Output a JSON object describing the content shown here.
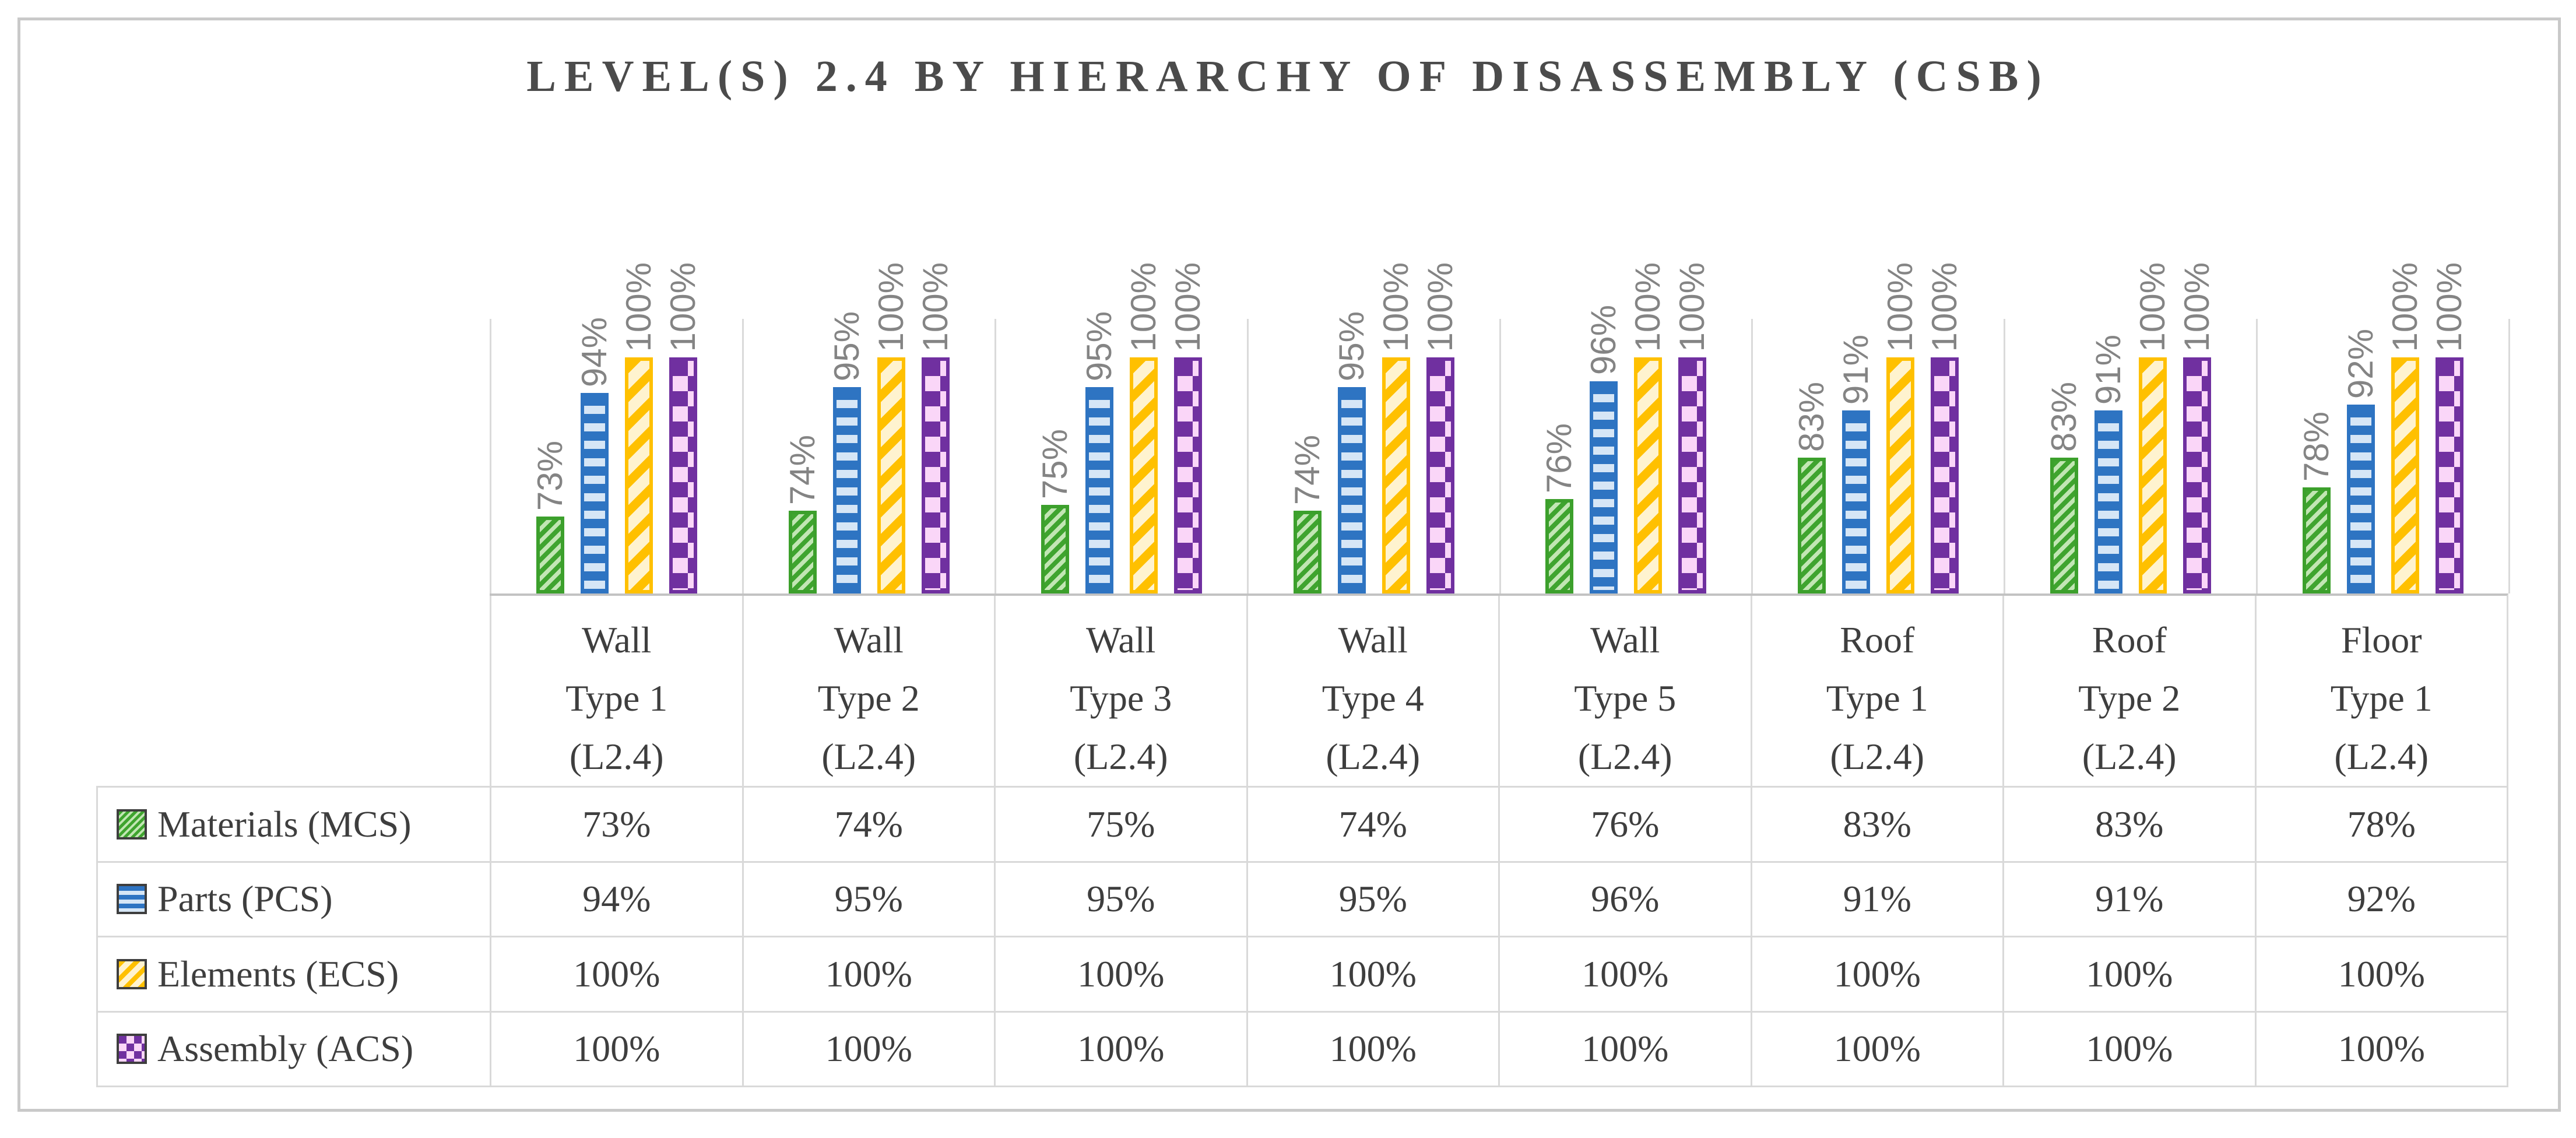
{
  "figure": {
    "background": "#ffffff",
    "border_color": "#c9c9c9",
    "gridline_color": "#d9d9d9",
    "axis_line_color": "#c2c2c2",
    "title_color": "#4b4b4b",
    "data_label_color": "#848484"
  },
  "chart_data": {
    "type": "bar",
    "title": "LEVEL(S) 2.4 BY HIERARCHY OF DISASSEMBLY (CSB)",
    "categories": [
      [
        "Wall",
        "Type 1",
        "(L2.4)"
      ],
      [
        "Wall",
        "Type 2",
        "(L2.4)"
      ],
      [
        "Wall",
        "Type 3",
        "(L2.4)"
      ],
      [
        "Wall",
        "Type 4",
        "(L2.4)"
      ],
      [
        "Wall",
        "Type 5",
        "(L2.4)"
      ],
      [
        "Roof",
        "Type 1",
        "(L2.4)"
      ],
      [
        "Roof",
        "Type 2",
        "(L2.4)"
      ],
      [
        "Floor",
        "Type 1",
        "(L2.4)"
      ]
    ],
    "series": [
      {
        "name": "Materials (MCS)",
        "pattern": "diagonal-hatch",
        "pattern_key": "materials",
        "color": "#3fa42f",
        "pattern_light": "#c2e6b4",
        "values": [
          73,
          74,
          75,
          74,
          76,
          83,
          83,
          78
        ]
      },
      {
        "name": "Parts (PCS)",
        "pattern": "horizontal-stripes",
        "pattern_key": "parts",
        "color": "#2e74c2",
        "pattern_light": "#d6e6f6",
        "values": [
          94,
          95,
          95,
          95,
          96,
          91,
          91,
          92
        ]
      },
      {
        "name": "Elements (ECS)",
        "pattern": "diagonal-stripes",
        "pattern_key": "elements",
        "color": "#ffc000",
        "pattern_light": "#fff3cf",
        "values": [
          100,
          100,
          100,
          100,
          100,
          100,
          100,
          100
        ]
      },
      {
        "name": "Assembly (ACS)",
        "pattern": "checkerboard",
        "pattern_key": "assembly",
        "color": "#7030a0",
        "pattern_light": "#fad6f8",
        "values": [
          100,
          100,
          100,
          100,
          100,
          100,
          100,
          100
        ]
      }
    ],
    "value_format": "percent",
    "data_labels": {
      "visible": true,
      "rotation_deg": 90,
      "position": "above-bar"
    },
    "axis": {
      "value_min": 60,
      "value_max": 100,
      "value_axis_visible": false
    },
    "grid": "vertical-category-separators",
    "legend_position": "table-left-column",
    "table_visible": true
  }
}
